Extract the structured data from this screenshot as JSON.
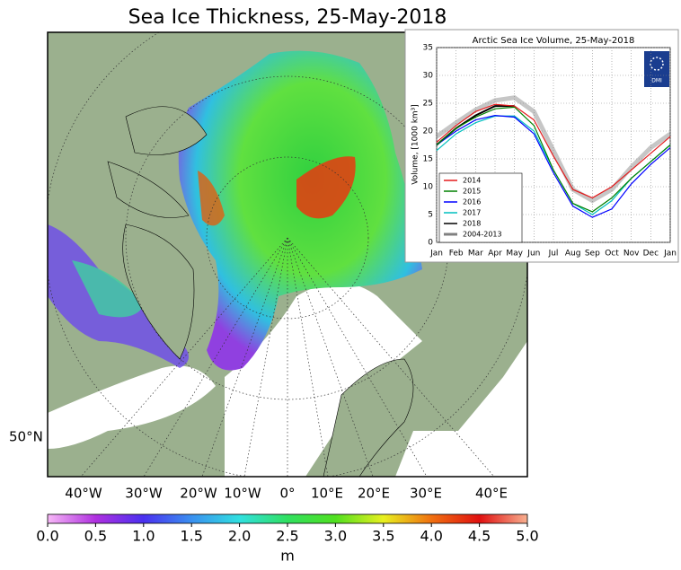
{
  "map": {
    "title": "Sea Ice Thickness, 25-May-2018",
    "longitude_labels": [
      "40°W",
      "30°W",
      "20°W",
      "10°W",
      "0°",
      "10°E",
      "20°E",
      "30°E",
      "40°E"
    ],
    "latitude_label": "50°N",
    "colorbar": {
      "range": [
        0,
        5
      ],
      "unit": "m",
      "ticks": [
        {
          "value": 0,
          "label": "0.0"
        },
        {
          "value": 0.5,
          "label": "0.5"
        },
        {
          "value": 1,
          "label": "1.0"
        },
        {
          "value": 1.5,
          "label": "1.5"
        },
        {
          "value": 2,
          "label": "2.0"
        },
        {
          "value": 2.5,
          "label": "2.5"
        },
        {
          "value": 3,
          "label": "3.0"
        },
        {
          "value": 3.5,
          "label": "3.5"
        },
        {
          "value": 4,
          "label": "4.0"
        },
        {
          "value": 4.5,
          "label": "4.5"
        },
        {
          "value": 5,
          "label": "5.0"
        }
      ]
    }
  },
  "chart_data": {
    "type": "line",
    "title": "Arctic Sea Ice Volume, 25-May-2018",
    "ylabel": "Volume, [1000 km³]",
    "logo": "DMI",
    "categories": [
      "Jan",
      "Feb",
      "Mar",
      "Apr",
      "May",
      "Jun",
      "Jul",
      "Aug",
      "Sep",
      "Oct",
      "Nov",
      "Dec",
      "Jan"
    ],
    "ylim": [
      0,
      35
    ],
    "yticks": [
      0,
      5,
      10,
      15,
      20,
      25,
      30,
      35
    ],
    "grid": true,
    "legend": "lower left",
    "series": [
      {
        "name": "2014",
        "color": "#e41a1c",
        "values": [
          18,
          21,
          23.5,
          24.8,
          24.5,
          22,
          15.5,
          9.5,
          8,
          10,
          13,
          16,
          19
        ]
      },
      {
        "name": "2015",
        "color": "#008000",
        "values": [
          17.5,
          20.5,
          22.5,
          24,
          24.3,
          21,
          13,
          7,
          5.5,
          8,
          11.5,
          14.5,
          17.5
        ]
      },
      {
        "name": "2016",
        "color": "#0000ff",
        "values": [
          17.5,
          20,
          22,
          22.8,
          22.5,
          19.5,
          12.5,
          6.5,
          4.5,
          6,
          10.5,
          14,
          17
        ]
      },
      {
        "name": "2017",
        "color": "#00bfbf",
        "values": [
          16.5,
          19.5,
          21.5,
          22.7,
          22.7,
          20,
          13,
          7,
          5,
          7.5,
          11.5,
          14.5,
          17.5
        ]
      },
      {
        "name": "2018",
        "color": "#000000",
        "values": [
          17.5,
          20.5,
          22.8,
          24.5,
          24.5,
          null,
          null,
          null,
          null,
          null,
          null,
          null,
          null
        ]
      },
      {
        "name": "2004-2013",
        "color": "#808080",
        "values": [
          19,
          21.5,
          23.8,
          25.5,
          26,
          23.5,
          16.5,
          9.5,
          7.5,
          9.5,
          13.5,
          17,
          19.5
        ]
      }
    ]
  }
}
